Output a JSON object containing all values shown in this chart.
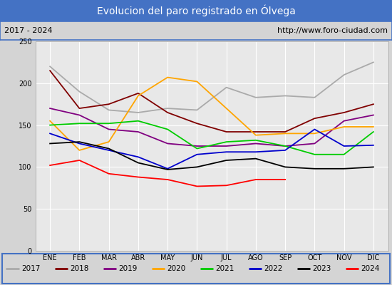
{
  "title": "Evolucion del paro registrado en Ólvega",
  "subtitle_left": "2017 - 2024",
  "subtitle_right": "http://www.foro-ciudad.com",
  "ylim": [
    0,
    250
  ],
  "yticks": [
    0,
    50,
    100,
    150,
    200,
    250
  ],
  "months": [
    "ENE",
    "FEB",
    "MAR",
    "ABR",
    "MAY",
    "JUN",
    "JUL",
    "AGO",
    "SEP",
    "OCT",
    "NOV",
    "DIC"
  ],
  "series": {
    "2017": {
      "color": "#aaaaaa",
      "data": [
        220,
        190,
        168,
        165,
        170,
        168,
        195,
        183,
        185,
        183,
        210,
        225
      ]
    },
    "2018": {
      "color": "#800000",
      "data": [
        215,
        170,
        175,
        188,
        165,
        152,
        142,
        142,
        142,
        158,
        165,
        175
      ]
    },
    "2019": {
      "color": "#800080",
      "data": [
        170,
        162,
        145,
        142,
        128,
        125,
        125,
        128,
        125,
        128,
        155,
        162
      ]
    },
    "2020": {
      "color": "#ffa500",
      "data": [
        155,
        120,
        130,
        185,
        207,
        202,
        170,
        138,
        140,
        140,
        148,
        148
      ]
    },
    "2021": {
      "color": "#00cc00",
      "data": [
        150,
        152,
        152,
        155,
        145,
        122,
        130,
        132,
        125,
        115,
        115,
        142
      ]
    },
    "2022": {
      "color": "#0000cc",
      "data": [
        140,
        128,
        120,
        112,
        98,
        115,
        118,
        118,
        120,
        145,
        125,
        126
      ]
    },
    "2023": {
      "color": "#000000",
      "data": [
        128,
        130,
        122,
        105,
        97,
        100,
        108,
        110,
        100,
        98,
        98,
        100
      ]
    },
    "2024": {
      "color": "#ff0000",
      "data": [
        102,
        108,
        92,
        88,
        85,
        77,
        78,
        85,
        85,
        null,
        null,
        null
      ]
    }
  },
  "background_color": "#d4d4d4",
  "title_bg_color": "#4472c4",
  "title_text_color": "#ffffff",
  "plot_bg_color": "#e8e8e8",
  "grid_color": "#ffffff",
  "border_color": "#4472c4",
  "title_fontsize": 10,
  "subtitle_fontsize": 8,
  "tick_fontsize": 7,
  "legend_fontsize": 7.5
}
